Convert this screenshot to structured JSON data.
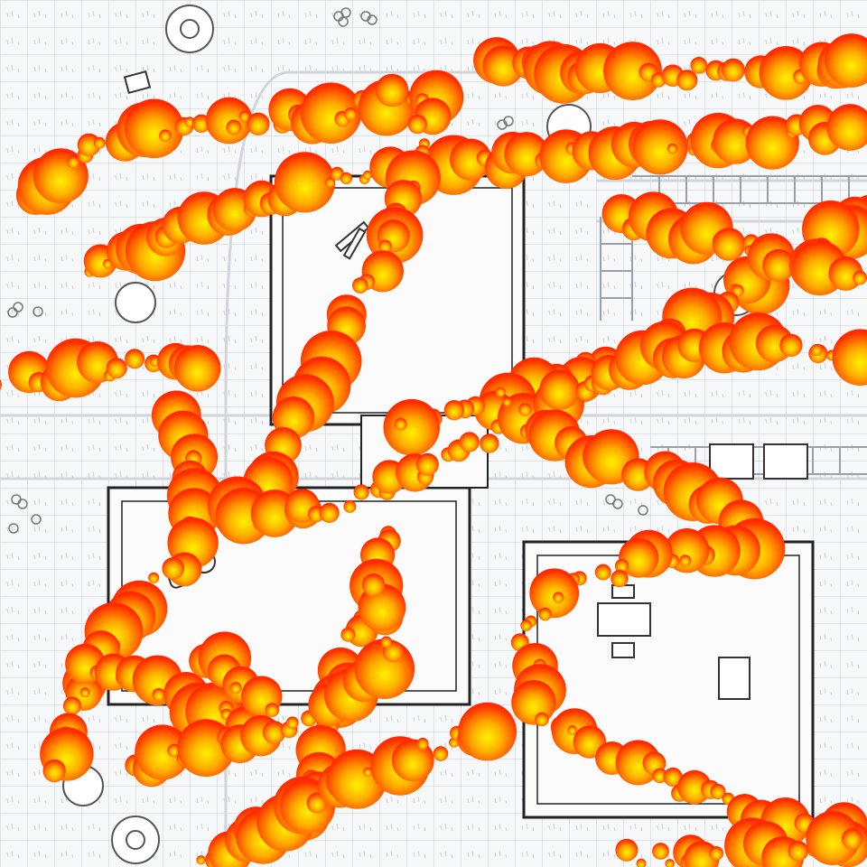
{
  "map": {
    "grid_color": "#c9ced6",
    "background": "#f7f8fa",
    "wall_color": "#222222",
    "room_floor": "#fbfbfc",
    "path_color": "#d7dbe2"
  },
  "effects": {
    "type": "fire-trail",
    "fire_outer": "#ff3000",
    "fire_mid": "#ff7a00",
    "fire_core": "#fff100"
  },
  "icons": [
    "boulder-icon",
    "clover-icon",
    "broken-chair-icon",
    "wood-planks-icon",
    "barrel-icon",
    "table-icon",
    "chair-icon",
    "bed-icon",
    "crate-icon",
    "railroad-track-icon"
  ]
}
